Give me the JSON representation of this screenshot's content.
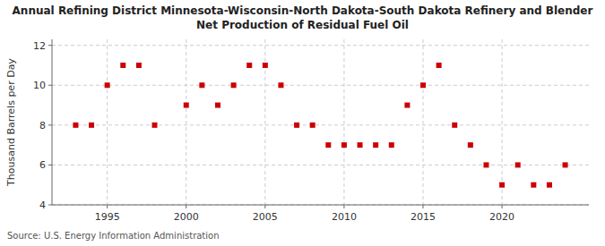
{
  "chart_data": {
    "type": "scatter",
    "title": "Annual Refining District Minnesota-Wisconsin-North Dakota-South Dakota Refinery and Blender",
    "subtitle": "Net Production of Residual Fuel Oil",
    "y_label": "Thousand Barrels per Day",
    "source": "Source: U.S. Energy Information Administration",
    "x": [
      1993,
      1994,
      1995,
      1996,
      1997,
      1998,
      2000,
      2001,
      2002,
      2003,
      2004,
      2005,
      2006,
      2007,
      2008,
      2009,
      2010,
      2011,
      2012,
      2013,
      2014,
      2015,
      2016,
      2017,
      2018,
      2019,
      2020,
      2021,
      2022,
      2023,
      2024
    ],
    "values": [
      8,
      8,
      10,
      11,
      11,
      8,
      9,
      10,
      9,
      10,
      11,
      11,
      10,
      8,
      8,
      7,
      7,
      7,
      7,
      7,
      9,
      10,
      11,
      8,
      7,
      6,
      5,
      6,
      5,
      5,
      6
    ],
    "color": "#cc0000",
    "marker": "square",
    "xlim": [
      1991.5,
      2025.5
    ],
    "ylim": [
      4,
      12.3
    ],
    "xticks": [
      1995,
      2000,
      2005,
      2010,
      2015,
      2020
    ],
    "yticks": [
      4,
      6,
      8,
      10,
      12
    ],
    "grid": true
  }
}
